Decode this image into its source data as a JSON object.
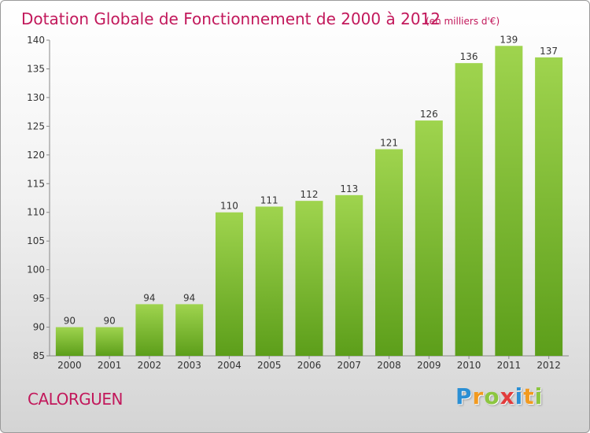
{
  "chart_data": {
    "type": "bar",
    "title": "Dotation Globale de Fonctionnement de 2000 à 2012",
    "subtitle": "(en milliers d'€)",
    "categories": [
      "2000",
      "2001",
      "2002",
      "2003",
      "2004",
      "2005",
      "2006",
      "2007",
      "2008",
      "2009",
      "2010",
      "2011",
      "2012"
    ],
    "values": [
      90,
      90,
      94,
      94,
      110,
      111,
      112,
      113,
      121,
      126,
      136,
      139,
      137
    ],
    "ylim": [
      85,
      140
    ],
    "yticks": [
      85,
      90,
      95,
      100,
      105,
      110,
      115,
      120,
      125,
      130,
      135,
      140
    ],
    "grid": false,
    "colors": {
      "bar_top": "#9fd44e",
      "bar_bottom": "#5c9e1a",
      "title": "#c2185b"
    }
  },
  "footer": {
    "commune": "CALORGUEN",
    "logo": {
      "letters": [
        "P",
        "r",
        "o",
        "x",
        "i",
        "t",
        "i"
      ],
      "colors": [
        "#2b8fd4",
        "#f29a1f",
        "#8cc63f",
        "#e23b3b",
        "#2b8fd4",
        "#f29a1f",
        "#8cc63f"
      ]
    }
  }
}
